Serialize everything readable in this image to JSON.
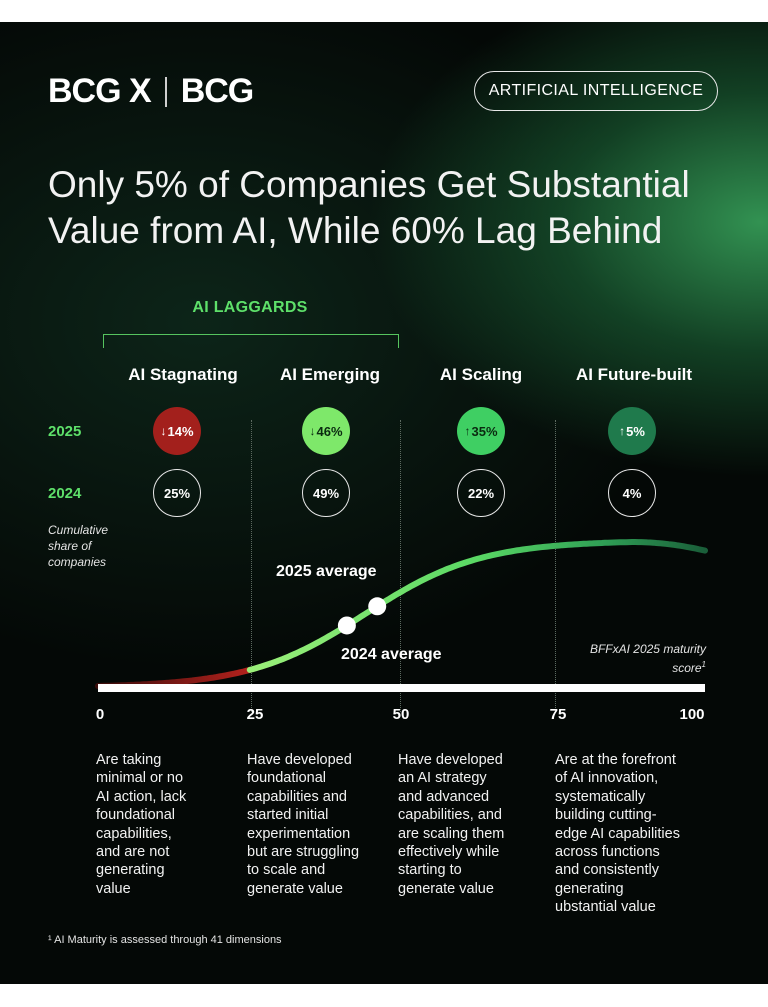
{
  "brand": {
    "logo_left": "BCG X",
    "logo_right": "BCG"
  },
  "tag": "ARTIFICIAL INTELLIGENCE",
  "title_lines": [
    "Only 5% of Companies Get Substantial",
    "Value from AI, While 60% Lag Behind"
  ],
  "laggards_label": "AI LAGGARDS",
  "year_labels": {
    "y2025": "2025",
    "y2024": "2024"
  },
  "y_axis_label": "Cumulative share of companies",
  "x_axis_label": "BFFxAI 2025 maturity score",
  "x_axis_label_sup": "1",
  "footnote": "¹ AI Maturity is assessed through 41 dimensions",
  "colors": {
    "stagnating": "#a3201c",
    "emerging": "#7ee86a",
    "scaling": "#3fcf63",
    "futurebuilt": "#1f7a4c",
    "accent": "#5ee06a"
  },
  "chart_data": {
    "type": "line",
    "xlim": [
      0,
      100
    ],
    "x_ticks": [
      "0",
      "25",
      "50",
      "75",
      "100"
    ],
    "categories": [
      {
        "name": "AI Stagnating",
        "range": [
          0,
          25
        ],
        "share_2025": "14%",
        "share_2024": "25%",
        "trend_2025": "down",
        "description": [
          "Are taking",
          "minimal or no",
          "AI action, lack",
          "foundational",
          "capabilities,",
          "and are not",
          "generating",
          "value"
        ]
      },
      {
        "name": "AI Emerging",
        "range": [
          25,
          50
        ],
        "share_2025": "46%",
        "share_2024": "49%",
        "trend_2025": "down",
        "description": [
          "Have developed",
          "foundational",
          "capabilities and",
          "started initial",
          "experimentation",
          "but are struggling",
          "to scale and",
          "generate value"
        ]
      },
      {
        "name": "AI Scaling",
        "range": [
          50,
          75
        ],
        "share_2025": "35%",
        "share_2024": "22%",
        "trend_2025": "up",
        "description": [
          "Have developed",
          "an AI strategy",
          "and advanced",
          "capabilities, and",
          "are scaling them",
          "effectively while",
          "starting to",
          "generate value"
        ]
      },
      {
        "name": "AI Future-built",
        "range": [
          75,
          100
        ],
        "share_2025": "5%",
        "share_2024": "4%",
        "trend_2025": "up",
        "description": [
          "Are at the forefront",
          "of AI innovation,",
          "systematically",
          "building cutting-",
          "edge AI capabilities",
          "across functions",
          "and consistently",
          "generating",
          "ubstantial value"
        ]
      }
    ],
    "averages": [
      {
        "label": "2025 average",
        "x": 46
      },
      {
        "label": "2024 average",
        "x": 41
      }
    ]
  }
}
